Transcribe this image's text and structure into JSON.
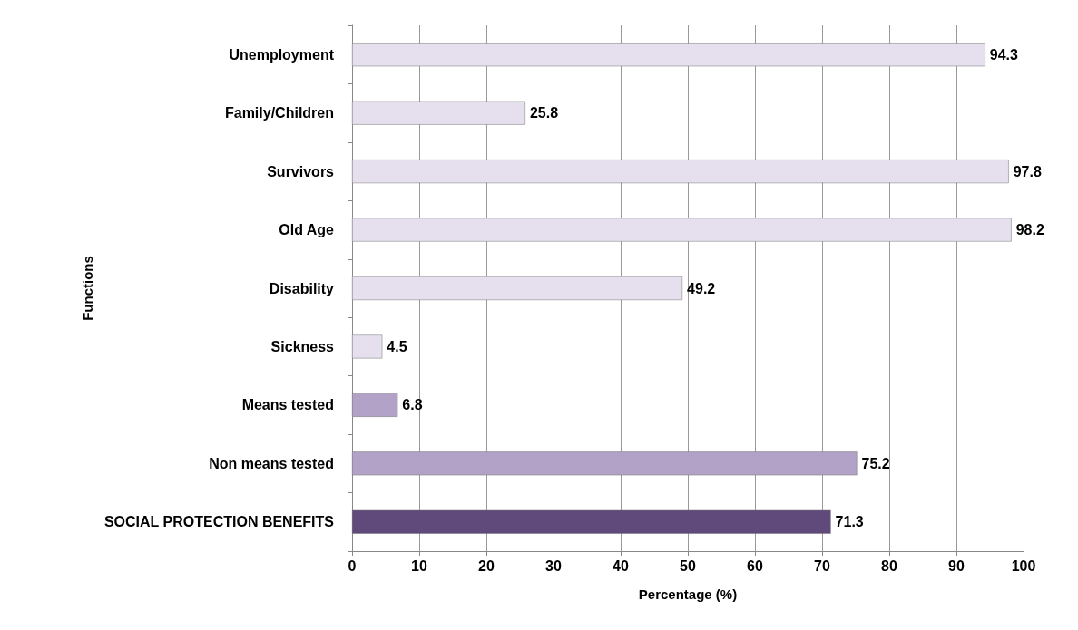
{
  "chart_data": {
    "type": "bar",
    "orientation": "horizontal",
    "xlabel": "Percentage (%)",
    "ylabel": "Functions",
    "categories": [
      "Unemployment",
      "Family/Children",
      "Survivors",
      "Old Age",
      "Disability",
      "Sickness",
      "Means tested",
      "Non means tested",
      "SOCIAL PROTECTION BENEFITS"
    ],
    "values": [
      94.3,
      25.8,
      97.8,
      98.2,
      49.2,
      4.5,
      6.8,
      75.2,
      71.3
    ],
    "colors": [
      "#e6e0ee",
      "#e6e0ee",
      "#e6e0ee",
      "#e6e0ee",
      "#e6e0ee",
      "#e6e0ee",
      "#b3a2c7",
      "#b3a2c7",
      "#604a7b"
    ],
    "xlim": [
      0,
      100
    ],
    "xticks": [
      0,
      10,
      20,
      30,
      40,
      50,
      60,
      70,
      80,
      90,
      100
    ],
    "grid": "x",
    "data_labels": true
  }
}
